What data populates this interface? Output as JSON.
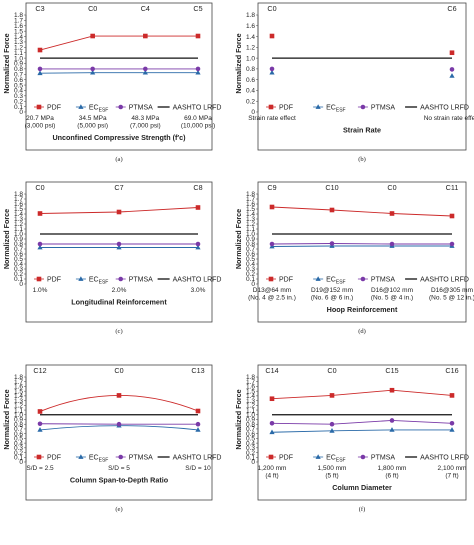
{
  "colors": {
    "pdf": "#cc2a2a",
    "ecesf": "#2a6aa8",
    "ptmsa": "#7a3aa8",
    "aashto": "#111111",
    "frame": "#444444"
  },
  "chart_data": [
    {
      "type": "line",
      "panel": "(a)",
      "ylabel": "Normalized Force",
      "xlabel": "Unconfined Compressive Strength (f′c)",
      "ylim": [
        0,
        1.8
      ],
      "yticks": [
        "0",
        "0.1",
        "0.2",
        "0.3",
        "0.4",
        "0.5",
        "0.6",
        "0.7",
        "0.8",
        "0.9",
        "1.0",
        "1.1",
        "1.2",
        "1.3",
        "1.4",
        "1.5",
        "1.6",
        "1.7",
        "1.8"
      ],
      "case_labels": [
        "C3",
        "C0",
        "C4",
        "C5"
      ],
      "categories": [
        [
          "20.7 MPa",
          "(3,000 psi)"
        ],
        [
          "34.5 MPa",
          "(5,000 psi)"
        ],
        [
          "48.3 MPa",
          "(7,000 psi)"
        ],
        [
          "69.0 MPa",
          "(10,000 psi)"
        ]
      ],
      "series": [
        {
          "name": "PDF",
          "values": [
            1.15,
            1.41,
            1.41,
            1.41
          ]
        },
        {
          "name": "ECESF",
          "values": [
            0.72,
            0.73,
            0.73,
            0.73
          ]
        },
        {
          "name": "PTMSA",
          "values": [
            0.8,
            0.8,
            0.8,
            0.8
          ]
        },
        {
          "name": "AASHTO LRFD",
          "values": [
            1.0,
            1.0,
            1.0,
            1.0
          ]
        }
      ]
    },
    {
      "type": "scatter",
      "panel": "(b)",
      "ylabel": "Normalized Force",
      "xlabel": "Strain Rate",
      "ylim": [
        0,
        1.8
      ],
      "yticks": [
        "0",
        "0.2",
        "0.4",
        "0.6",
        "0.8",
        "1.0",
        "1.2",
        "1.4",
        "1.6",
        "1.8"
      ],
      "case_labels": [
        "C0",
        "C6"
      ],
      "categories": [
        [
          "Strain rate effect"
        ],
        [
          "No strain rate effect"
        ]
      ],
      "series": [
        {
          "name": "PDF",
          "values": [
            1.41,
            1.1
          ]
        },
        {
          "name": "ECESF",
          "values": [
            0.73,
            0.67
          ]
        },
        {
          "name": "PTMSA",
          "values": [
            0.8,
            0.79
          ]
        },
        {
          "name": "AASHTO LRFD",
          "values": [
            1.0,
            1.0
          ]
        }
      ]
    },
    {
      "type": "line",
      "panel": "(c)",
      "ylabel": "Normalized Force",
      "xlabel": "Longitudinal Reinforcement",
      "ylim": [
        0,
        1.8
      ],
      "yticks": [
        "0",
        "0.1",
        "0.2",
        "0.3",
        "0.4",
        "0.5",
        "0.6",
        "0.7",
        "0.8",
        "0.9",
        "1.0",
        "1.1",
        "1.2",
        "1.3",
        "1.4",
        "1.5",
        "1.6",
        "1.7",
        "1.8"
      ],
      "case_labels": [
        "C0",
        "C7",
        "C8"
      ],
      "categories": [
        [
          "1.0%"
        ],
        [
          "2.0%"
        ],
        [
          "3.0%"
        ]
      ],
      "series": [
        {
          "name": "PDF",
          "values": [
            1.41,
            1.44,
            1.53
          ]
        },
        {
          "name": "ECESF",
          "values": [
            0.73,
            0.73,
            0.73
          ]
        },
        {
          "name": "PTMSA",
          "values": [
            0.8,
            0.8,
            0.8
          ]
        },
        {
          "name": "AASHTO LRFD",
          "values": [
            1.0,
            1.0,
            1.0
          ]
        }
      ]
    },
    {
      "type": "line",
      "panel": "(d)",
      "ylabel": "Normalized Force",
      "xlabel": "Hoop Reinforcement",
      "ylim": [
        0,
        1.8
      ],
      "yticks": [
        "0",
        "0.1",
        "0.2",
        "0.3",
        "0.4",
        "0.5",
        "0.6",
        "0.7",
        "0.8",
        "0.9",
        "1.0",
        "1.1",
        "1.2",
        "1.3",
        "1.4",
        "1.5",
        "1.6",
        "1.7",
        "1.8"
      ],
      "case_labels": [
        "C9",
        "C10",
        "C0",
        "C11"
      ],
      "categories": [
        [
          "D13@64 mm",
          "(No. 4 @ 2.5 in.)"
        ],
        [
          "D19@152 mm",
          "(No. 6 @ 6 in.)"
        ],
        [
          "D16@102 mm",
          "(No. 5 @ 4 in.)"
        ],
        [
          "D16@305 mm",
          "(No. 5 @ 12 in.)"
        ]
      ],
      "series": [
        {
          "name": "PDF",
          "values": [
            1.54,
            1.48,
            1.41,
            1.36
          ]
        },
        {
          "name": "ECESF",
          "values": [
            0.75,
            0.76,
            0.76,
            0.76
          ]
        },
        {
          "name": "PTMSA",
          "values": [
            0.8,
            0.81,
            0.8,
            0.8
          ]
        },
        {
          "name": "AASHTO LRFD",
          "values": [
            1.0,
            1.0,
            1.0,
            1.0
          ]
        }
      ]
    },
    {
      "type": "line",
      "panel": "(e)",
      "ylabel": "Normalized Force",
      "xlabel": "Column Span-to-Depth Ratio",
      "ylim": [
        0,
        1.8
      ],
      "yticks": [
        "0",
        "0.1",
        "0.2",
        "0.3",
        "0.4",
        "0.5",
        "0.6",
        "0.7",
        "0.8",
        "0.9",
        "1.0",
        "1.1",
        "1.2",
        "1.3",
        "1.4",
        "1.5",
        "1.6",
        "1.7",
        "1.8"
      ],
      "case_labels": [
        "C12",
        "C0",
        "C13"
      ],
      "categories": [
        [
          "S/D = 2.5"
        ],
        [
          "S/D = 5"
        ],
        [
          "S/D = 10"
        ]
      ],
      "series": [
        {
          "name": "PDF",
          "values": [
            1.07,
            1.41,
            1.08
          ]
        },
        {
          "name": "ECESF",
          "values": [
            0.68,
            0.77,
            0.68
          ]
        },
        {
          "name": "PTMSA",
          "values": [
            0.81,
            0.8,
            0.8
          ]
        },
        {
          "name": "AASHTO LRFD",
          "values": [
            1.0,
            1.0,
            1.0
          ]
        }
      ]
    },
    {
      "type": "line",
      "panel": "(f)",
      "ylabel": "Normalized Force",
      "xlabel": "Column Diameter",
      "ylim": [
        0,
        1.8
      ],
      "yticks": [
        "0",
        "0.1",
        "0.2",
        "0.3",
        "0.4",
        "0.5",
        "0.6",
        "0.7",
        "0.8",
        "0.9",
        "1.0",
        "1.1",
        "1.2",
        "1.3",
        "1.4",
        "1.5",
        "1.6",
        "1.7",
        "1.8"
      ],
      "case_labels": [
        "C14",
        "C0",
        "C15",
        "C16"
      ],
      "categories": [
        [
          "1,200 mm",
          "(4 ft)"
        ],
        [
          "1,500 mm",
          "(5 ft)"
        ],
        [
          "1,800 mm",
          "(6 ft)"
        ],
        [
          "2,100 mm",
          "(7 ft)"
        ]
      ],
      "series": [
        {
          "name": "PDF",
          "values": [
            1.34,
            1.41,
            1.52,
            1.41
          ]
        },
        {
          "name": "ECESF",
          "values": [
            0.63,
            0.66,
            0.68,
            0.68
          ]
        },
        {
          "name": "PTMSA",
          "values": [
            0.82,
            0.8,
            0.88,
            0.82
          ]
        },
        {
          "name": "AASHTO LRFD",
          "values": [
            1.0,
            1.0,
            1.0,
            1.0
          ]
        }
      ]
    }
  ],
  "legend": {
    "pdf": "PDF",
    "ecesf_main": "EC",
    "ecesf_sub": "ESF",
    "ptmsa": "PTMSA",
    "aashto": "AASHTO LRFD"
  }
}
